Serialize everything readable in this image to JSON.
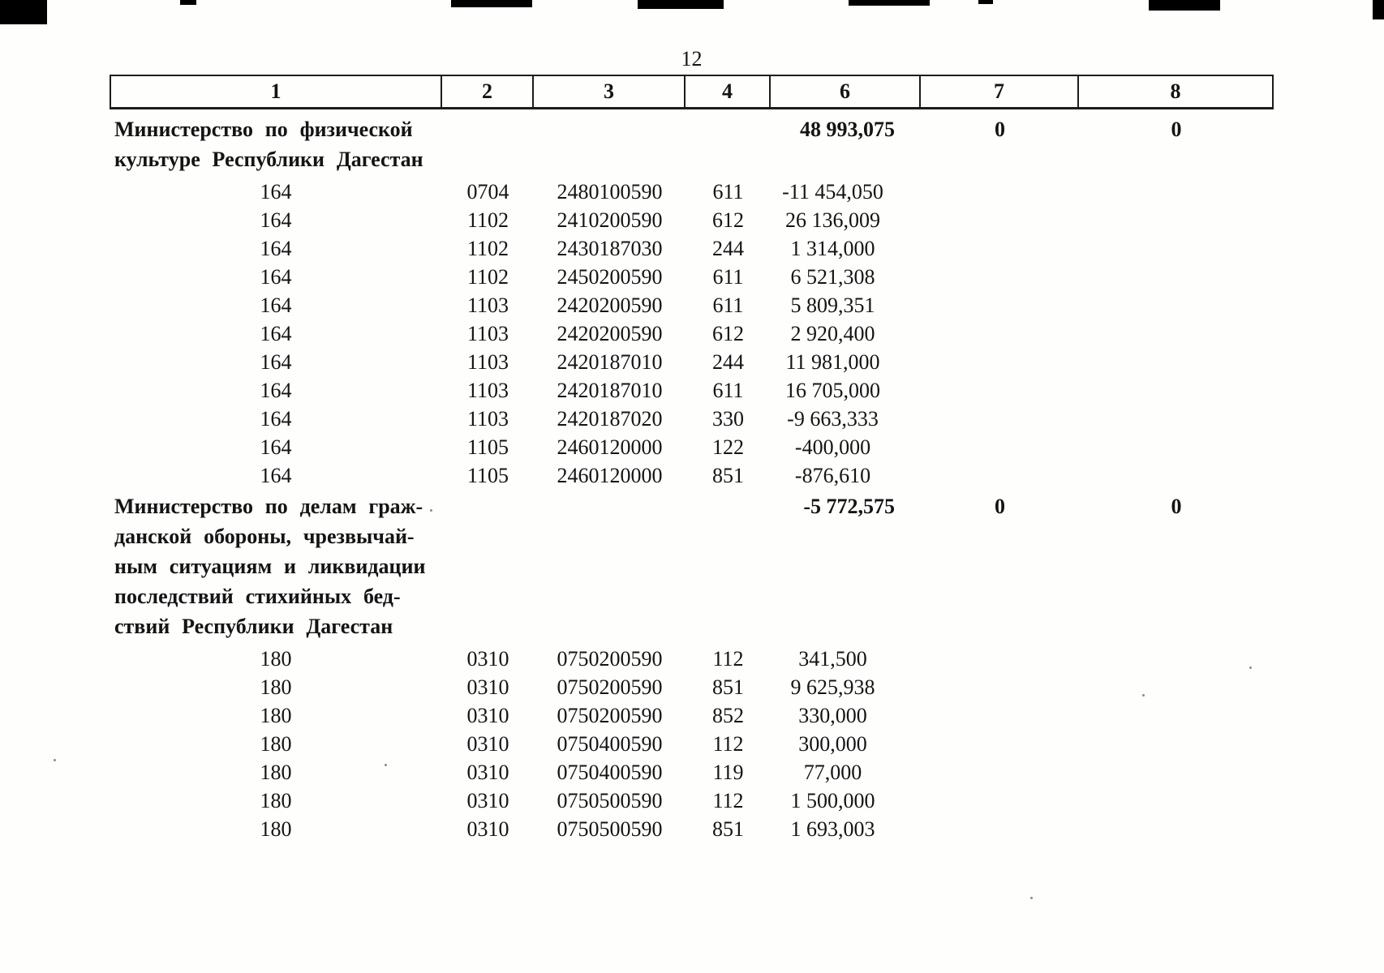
{
  "page": {
    "number": "12"
  },
  "table": {
    "headers": [
      "1",
      "2",
      "3",
      "4",
      "6",
      "7",
      "8"
    ],
    "rows": [
      {
        "kind": "group",
        "name": "Министерство по физической\nкультуре Республики Дагестан",
        "c6": "48 993,075",
        "c7": "0",
        "c8": "0"
      },
      {
        "kind": "data",
        "c1": "164",
        "c2": "0704",
        "c3": "2480100590",
        "c4": "611",
        "c6": "-11 454,050"
      },
      {
        "kind": "data",
        "c1": "164",
        "c2": "1102",
        "c3": "2410200590",
        "c4": "612",
        "c6": "26 136,009"
      },
      {
        "kind": "data",
        "c1": "164",
        "c2": "1102",
        "c3": "2430187030",
        "c4": "244",
        "c6": "1 314,000"
      },
      {
        "kind": "data",
        "c1": "164",
        "c2": "1102",
        "c3": "2450200590",
        "c4": "611",
        "c6": "6 521,308"
      },
      {
        "kind": "data",
        "c1": "164",
        "c2": "1103",
        "c3": "2420200590",
        "c4": "611",
        "c6": "5 809,351"
      },
      {
        "kind": "data",
        "c1": "164",
        "c2": "1103",
        "c3": "2420200590",
        "c4": "612",
        "c6": "2 920,400"
      },
      {
        "kind": "data",
        "c1": "164",
        "c2": "1103",
        "c3": "2420187010",
        "c4": "244",
        "c6": "11 981,000"
      },
      {
        "kind": "data",
        "c1": "164",
        "c2": "1103",
        "c3": "2420187010",
        "c4": "611",
        "c6": "16 705,000"
      },
      {
        "kind": "data",
        "c1": "164",
        "c2": "1103",
        "c3": "2420187020",
        "c4": "330",
        "c6": "-9 663,333"
      },
      {
        "kind": "data",
        "c1": "164",
        "c2": "1105",
        "c3": "2460120000",
        "c4": "122",
        "c6": "-400,000"
      },
      {
        "kind": "data",
        "c1": "164",
        "c2": "1105",
        "c3": "2460120000",
        "c4": "851",
        "c6": "-876,610"
      },
      {
        "kind": "group",
        "name": "Министерство по делам граж-\nданской обороны, чрезвычай-\nным ситуациям и ликвидации\nпоследствий стихийных бед-\nствий Республики Дагестан",
        "c6": "-5 772,575",
        "c7": "0",
        "c8": "0"
      },
      {
        "kind": "data",
        "c1": "180",
        "c2": "0310",
        "c3": "0750200590",
        "c4": "112",
        "c6": "341,500"
      },
      {
        "kind": "data",
        "c1": "180",
        "c2": "0310",
        "c3": "0750200590",
        "c4": "851",
        "c6": "9 625,938"
      },
      {
        "kind": "data",
        "c1": "180",
        "c2": "0310",
        "c3": "0750200590",
        "c4": "852",
        "c6": "330,000"
      },
      {
        "kind": "data",
        "c1": "180",
        "c2": "0310",
        "c3": "0750400590",
        "c4": "112",
        "c6": "300,000"
      },
      {
        "kind": "data",
        "c1": "180",
        "c2": "0310",
        "c3": "0750400590",
        "c4": "119",
        "c6": "77,000"
      },
      {
        "kind": "data",
        "c1": "180",
        "c2": "0310",
        "c3": "0750500590",
        "c4": "112",
        "c6": "1 500,000"
      },
      {
        "kind": "data",
        "c1": "180",
        "c2": "0310",
        "c3": "0750500590",
        "c4": "851",
        "c6": "1 693,003"
      }
    ]
  }
}
